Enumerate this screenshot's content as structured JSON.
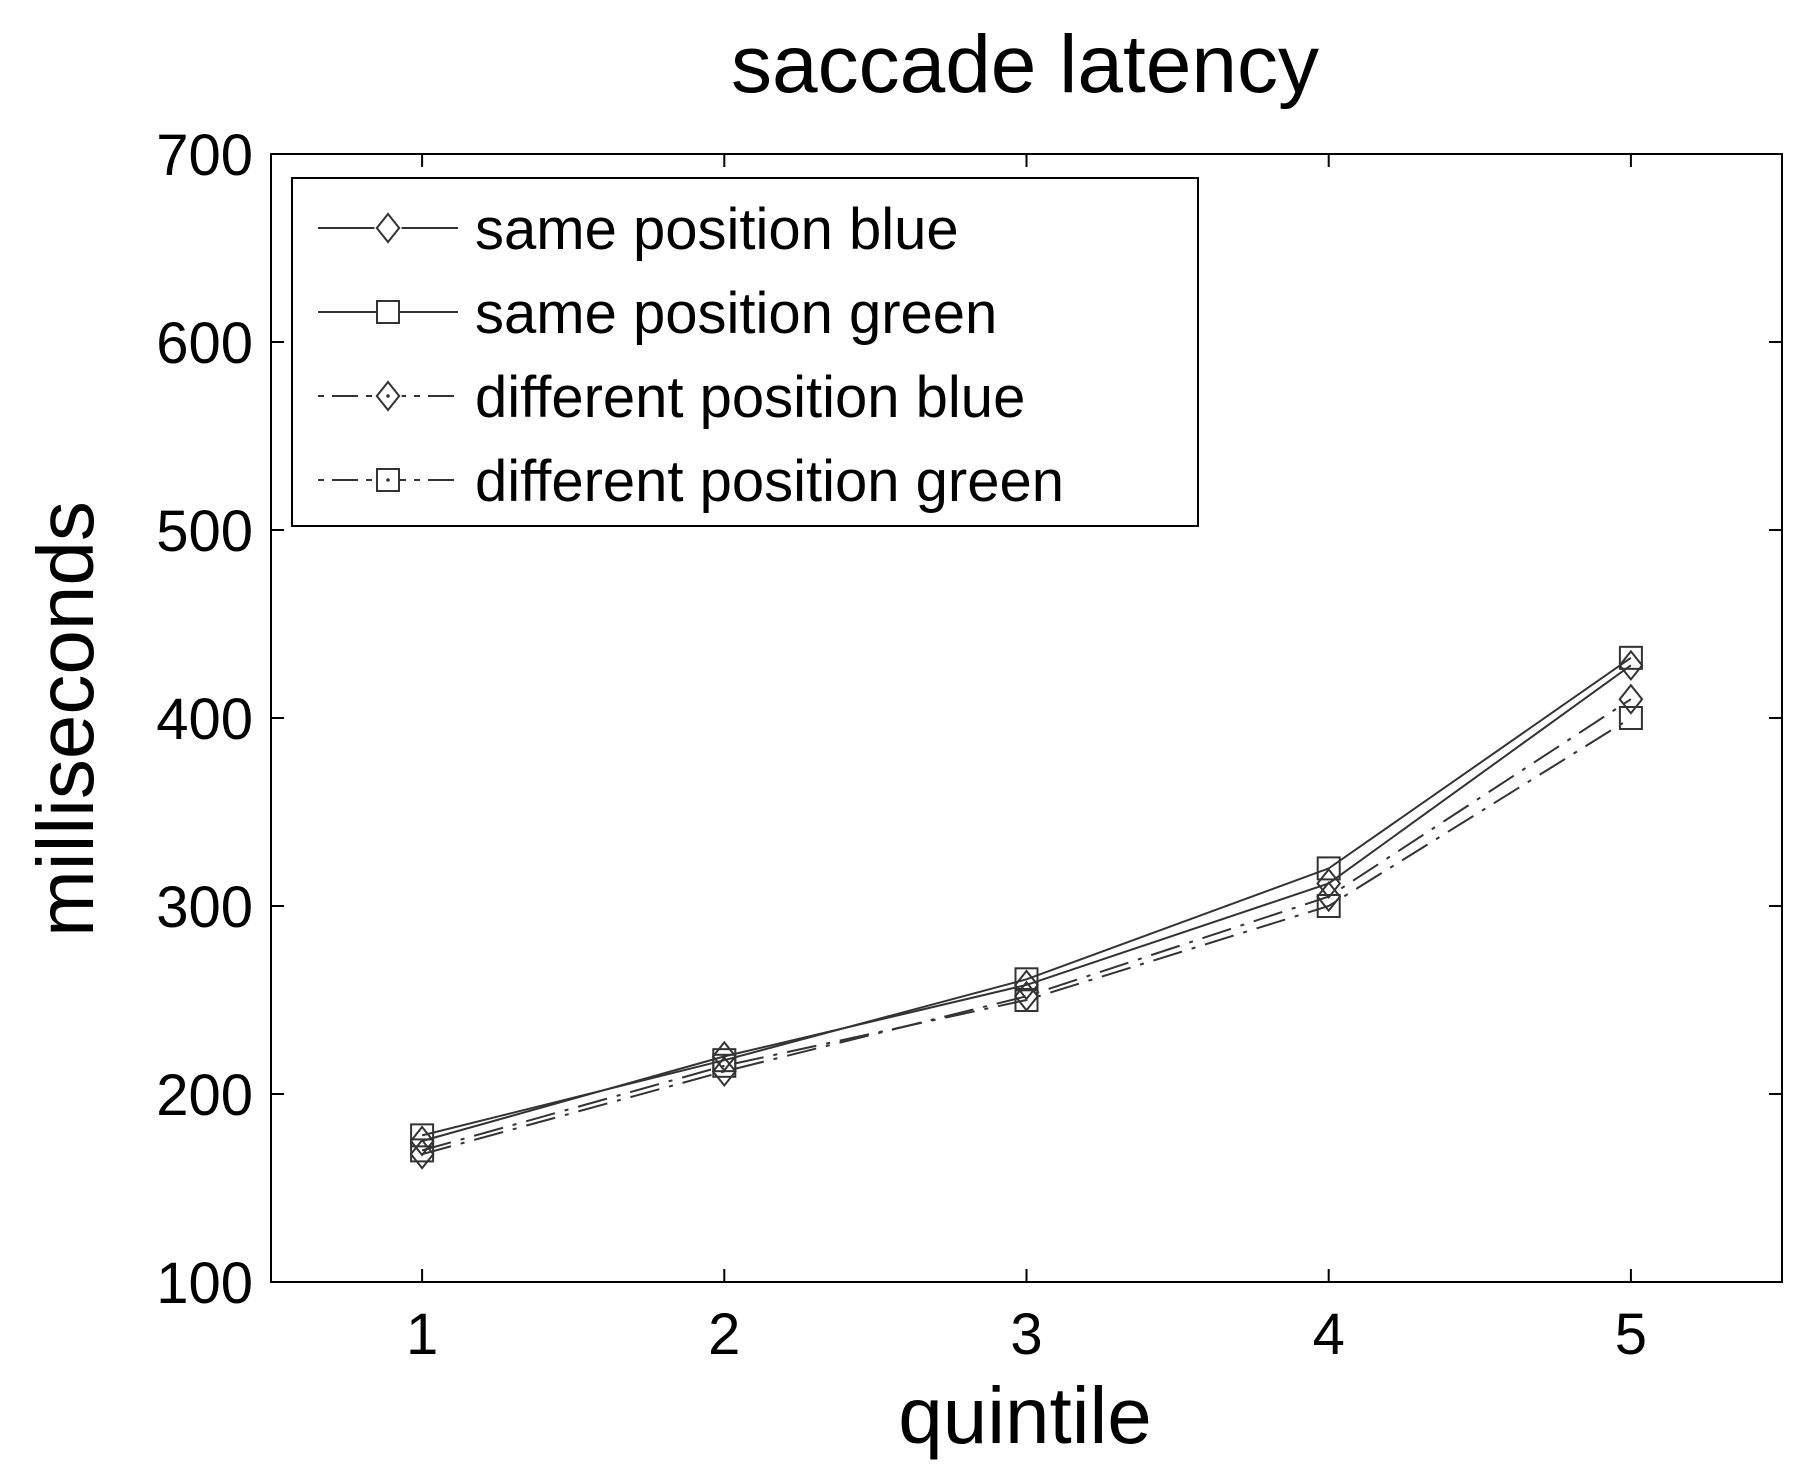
{
  "chart_data": {
    "type": "line",
    "title": "saccade latency",
    "xlabel": "quintile",
    "ylabel": "milliseconds",
    "x": [
      1,
      2,
      3,
      4,
      5
    ],
    "xlim": [
      0.5,
      5.5
    ],
    "ylim": [
      100,
      700
    ],
    "xticks": [
      1,
      2,
      3,
      4,
      5
    ],
    "yticks": [
      100,
      200,
      300,
      400,
      500,
      600,
      700
    ],
    "grid": false,
    "legend_position": "top-left",
    "line_color": "#333333",
    "series": [
      {
        "name": "same position blue",
        "marker": "diamond",
        "line": "solid",
        "values": [
          175,
          220,
          258,
          312,
          428
        ]
      },
      {
        "name": "same position green",
        "marker": "square",
        "line": "solid",
        "values": [
          178,
          218,
          261,
          320,
          432
        ]
      },
      {
        "name": "different position blue",
        "marker": "diamond",
        "line": "dashdot",
        "values": [
          168,
          212,
          252,
          305,
          410
        ]
      },
      {
        "name": "different position green",
        "marker": "square",
        "line": "dashdot",
        "values": [
          170,
          215,
          250,
          300,
          400
        ]
      }
    ]
  }
}
